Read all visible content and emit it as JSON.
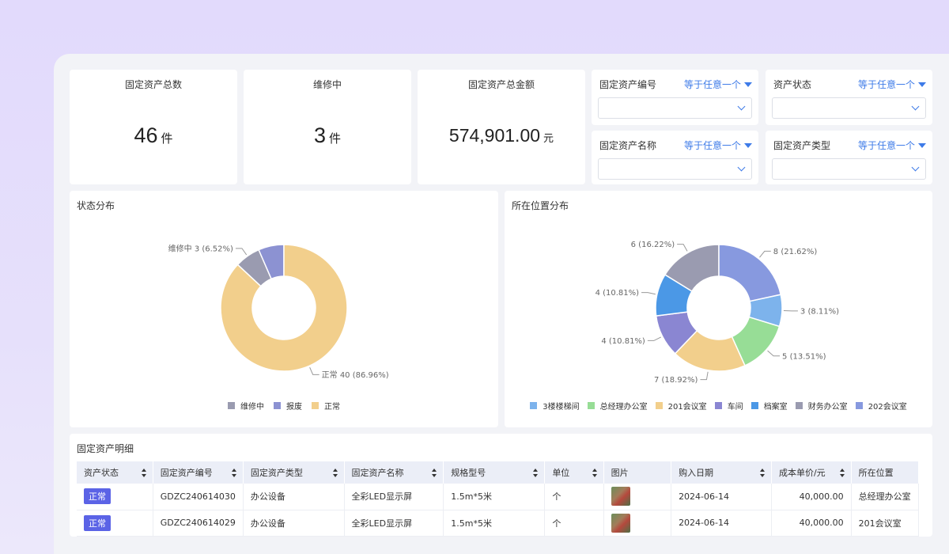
{
  "stats": [
    {
      "label": "固定资产总数",
      "value": "46",
      "unit": "件"
    },
    {
      "label": "维修中",
      "value": "3",
      "unit": "件"
    },
    {
      "label": "固定资产总金额",
      "value": "574,901.00",
      "unit": "元"
    }
  ],
  "filters": [
    {
      "label": "固定资产编号",
      "op": "等于任意一个"
    },
    {
      "label": "资产状态",
      "op": "等于任意一个"
    },
    {
      "label": "固定资产名称",
      "op": "等于任意一个"
    },
    {
      "label": "固定资产类型",
      "op": "等于任意一个"
    }
  ],
  "chart_data": [
    {
      "type": "pie",
      "title": "状态分布",
      "categories": [
        "维修中",
        "报废",
        "正常"
      ],
      "values": [
        3,
        3,
        40
      ],
      "labels": [
        "维修中 3 (6.52%)",
        "",
        "正常 40 (86.96%)"
      ],
      "colors": [
        "#9a9bb0",
        "#8c92d2",
        "#f2cf8c"
      ],
      "legend_position": "bottom"
    },
    {
      "type": "pie",
      "title": "所在位置分布",
      "categories": [
        "3楼楼梯间",
        "总经理办公室",
        "201会议室",
        "车间",
        "档案室",
        "财务办公室",
        "202会议室"
      ],
      "values": [
        3,
        5,
        7,
        4,
        4,
        6,
        8
      ],
      "labels": [
        "3 (8.11%)",
        "5 (13.51%)",
        "7 (18.92%)",
        "4 (10.81%)",
        "4 (10.81%)",
        "6 (16.22%)",
        "8 (21.62%)"
      ],
      "colors": [
        "#7db3ec",
        "#97dd96",
        "#f2cf8c",
        "#8a86d2",
        "#4b98e6",
        "#9a9bb0",
        "#8799df"
      ],
      "legend_position": "bottom"
    }
  ],
  "table": {
    "title": "固定资产明细",
    "columns": [
      "资产状态",
      "固定资产编号",
      "固定资产类型",
      "固定资产名称",
      "规格型号",
      "单位",
      "图片",
      "购入日期",
      "成本单价/元",
      "所在位置"
    ],
    "rows": [
      [
        "正常",
        "GDZC240614030",
        "办公设备",
        "全彩LED显示屏",
        "1.5m*5米",
        "个",
        "",
        "2024-06-14",
        "40,000.00",
        "总经理办公室"
      ],
      [
        "正常",
        "GDZC240614029",
        "办公设备",
        "全彩LED显示屏",
        "1.5m*5米",
        "个",
        "",
        "2024-06-14",
        "40,000.00",
        "201会议室"
      ]
    ]
  }
}
